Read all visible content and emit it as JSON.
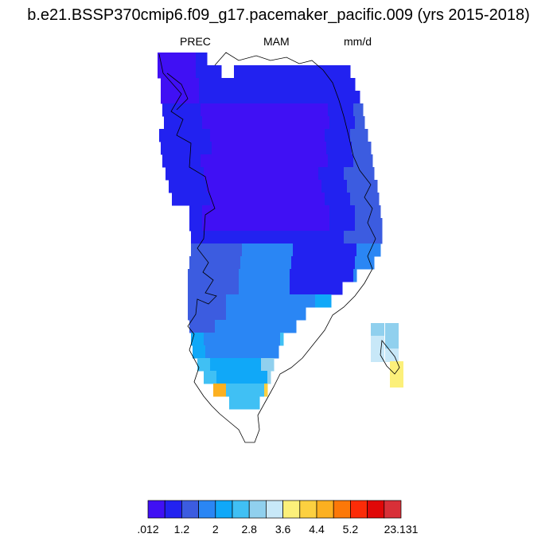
{
  "title": "b.e21.BSSP370cmip6.f09_g17.pacemaker_pacific.009 (yrs 2015-2018)",
  "variable": "PREC",
  "season": "MAM",
  "units": "mm/d",
  "colorbar": {
    "colors": [
      "#4010f4",
      "#2222f0",
      "#3c5ce0",
      "#2a86f4",
      "#10a8f8",
      "#40c0f4",
      "#90d0ee",
      "#c8e8f8",
      "#fcf07a",
      "#fcd040",
      "#fcb020",
      "#fc7808",
      "#fc2c08",
      "#e00808",
      "#d83038"
    ],
    "tick_labels": [
      ".012",
      "1.2",
      "2",
      "2.8",
      "3.6",
      "4.4",
      "5.2",
      "23.131"
    ]
  }
}
